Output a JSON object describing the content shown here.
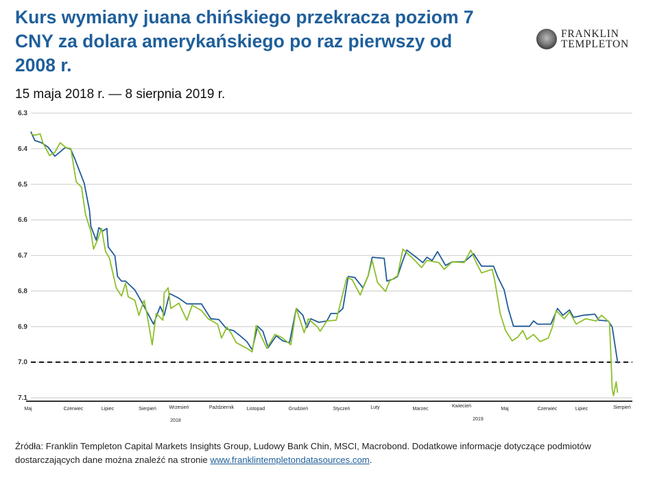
{
  "header": {
    "title": "Kurs wymiany juana chińskiego przekracza poziom 7 CNY za dolara amerykańskiego po raz pierwszy od 2008 r.",
    "subtitle": "15 maja 2018 r. — 8 sierpnia 2019 r.",
    "logo_line1": "FRANKLIN",
    "logo_line2": "TEMPLETON"
  },
  "footer": {
    "text": "Źródła: Franklin Templeton Capital Markets Insights Group, Ludowy Bank Chin, MSCI, Macrobond. Dodatkowe informacje dotyczące podmiotów dostarczających dane można znaleźć na stronie ",
    "link": "www.franklintempletondatasources.com",
    "end": "."
  },
  "chart_data": {
    "type": "line",
    "title": "Kurs wymiany juana chińskiego przekracza poziom 7 CNY za dolara amerykańskiego po raz pierwszy od 2008 r.",
    "x_unit": "days since 2018-05-15",
    "xlim": [
      0,
      451
    ],
    "ylim": [
      6.3,
      7.1
    ],
    "y_inverted": true,
    "yticks": [
      "6.3",
      "6.4",
      "6.5",
      "6.6",
      "6.7",
      "6.8",
      "6.9",
      "7.0",
      "7.1"
    ],
    "xtick_labels": [
      "Maj",
      "Czerwiec",
      "Lipiec",
      "Sierpień",
      "Wrzesień",
      "Październik",
      "Listopad",
      "Grudzień",
      "Styczeń",
      "Luty",
      "Marzec",
      "Kwiecień",
      "Maj",
      "Czerwiec",
      "Lipiec",
      "Sierpień"
    ],
    "year_labels": [
      "2018",
      "2019"
    ],
    "grid": true,
    "reference_line": {
      "value": 7.0,
      "style": "dashed",
      "color": "#111111"
    },
    "series": [
      {
        "color": "#1f5c99",
        "x": [
          0,
          3,
          8,
          13,
          18,
          26,
          30,
          33,
          40,
          44,
          45,
          49,
          51,
          54,
          57,
          58,
          63,
          65,
          68,
          71,
          78,
          83,
          92,
          97,
          100,
          104,
          111,
          117,
          128,
          135,
          141,
          147,
          152,
          157,
          162,
          166,
          170,
          174,
          178,
          184,
          189,
          194,
          199,
          204,
          207,
          210,
          216,
          222,
          225,
          230,
          234,
          238,
          243,
          249,
          253,
          256,
          265,
          267,
          272,
          275,
          279,
          282,
          289,
          294,
          297,
          301,
          305,
          311,
          316,
          325,
          332,
          338,
          347,
          350,
          355,
          358,
          362,
          368,
          374,
          377,
          380,
          390,
          395,
          399,
          404,
          407,
          414,
          423,
          426,
          433,
          436,
          440,
          441
        ],
        "y": [
          6.352,
          6.377,
          6.383,
          6.396,
          6.421,
          6.396,
          6.402,
          6.429,
          6.497,
          6.574,
          6.618,
          6.657,
          6.622,
          6.631,
          6.624,
          6.676,
          6.701,
          6.759,
          6.772,
          6.772,
          6.797,
          6.83,
          6.893,
          6.843,
          6.868,
          6.807,
          6.82,
          6.836,
          6.836,
          6.878,
          6.88,
          6.907,
          6.911,
          6.926,
          6.942,
          6.965,
          6.899,
          6.913,
          6.959,
          6.926,
          6.94,
          6.945,
          6.849,
          6.868,
          6.903,
          6.878,
          6.888,
          6.884,
          6.863,
          6.863,
          6.849,
          6.759,
          6.762,
          6.791,
          6.757,
          6.705,
          6.708,
          6.772,
          6.766,
          6.759,
          6.714,
          6.685,
          6.705,
          6.72,
          6.705,
          6.714,
          6.689,
          6.728,
          6.718,
          6.718,
          6.695,
          6.73,
          6.73,
          6.759,
          6.797,
          6.849,
          6.899,
          6.899,
          6.899,
          6.884,
          6.893,
          6.893,
          6.849,
          6.868,
          6.853,
          6.874,
          6.868,
          6.865,
          6.882,
          6.884,
          6.901,
          6.999,
          7.003
        ]
      },
      {
        "color": "#8dbf2a",
        "x": [
          0,
          3,
          7,
          9,
          14,
          18,
          22,
          26,
          30,
          34,
          38,
          41,
          45,
          47,
          50,
          53,
          56,
          59,
          64,
          68,
          71,
          73,
          78,
          81,
          85,
          87,
          91,
          94,
          99,
          100,
          103,
          105,
          111,
          117,
          121,
          128,
          133,
          140,
          143,
          147,
          150,
          154,
          162,
          166,
          169,
          177,
          183,
          188,
          195,
          199,
          205,
          208,
          215,
          217,
          222,
          229,
          237,
          241,
          247,
          253,
          256,
          260,
          266,
          269,
          275,
          279,
          287,
          293,
          297,
          306,
          310,
          316,
          325,
          330,
          334,
          338,
          346,
          348,
          352,
          356,
          361,
          365,
          369,
          372,
          377,
          382,
          388,
          391,
          394,
          400,
          404,
          409,
          416,
          424,
          428,
          434,
          436,
          437,
          439,
          440
        ],
        "y": [
          6.358,
          6.362,
          6.358,
          6.383,
          6.419,
          6.41,
          6.383,
          6.396,
          6.4,
          6.493,
          6.508,
          6.585,
          6.633,
          6.682,
          6.656,
          6.624,
          6.689,
          6.708,
          6.791,
          6.814,
          6.778,
          6.816,
          6.826,
          6.868,
          6.826,
          6.863,
          6.951,
          6.863,
          6.882,
          6.805,
          6.791,
          6.849,
          6.834,
          6.882,
          6.84,
          6.855,
          6.878,
          6.893,
          6.932,
          6.901,
          6.917,
          6.945,
          6.961,
          6.971,
          6.897,
          6.961,
          6.922,
          6.93,
          6.951,
          6.849,
          6.917,
          6.878,
          6.901,
          6.913,
          6.884,
          6.882,
          6.762,
          6.768,
          6.811,
          6.757,
          6.714,
          6.776,
          6.801,
          6.772,
          6.757,
          6.682,
          6.71,
          6.734,
          6.714,
          6.72,
          6.739,
          6.718,
          6.72,
          6.685,
          6.72,
          6.749,
          6.739,
          6.772,
          6.863,
          6.911,
          6.94,
          6.93,
          6.911,
          6.936,
          6.922,
          6.942,
          6.932,
          6.903,
          6.855,
          6.878,
          6.859,
          6.893,
          6.878,
          6.884,
          6.868,
          6.888,
          7.075,
          7.094,
          7.055,
          7.086
        ]
      }
    ]
  }
}
